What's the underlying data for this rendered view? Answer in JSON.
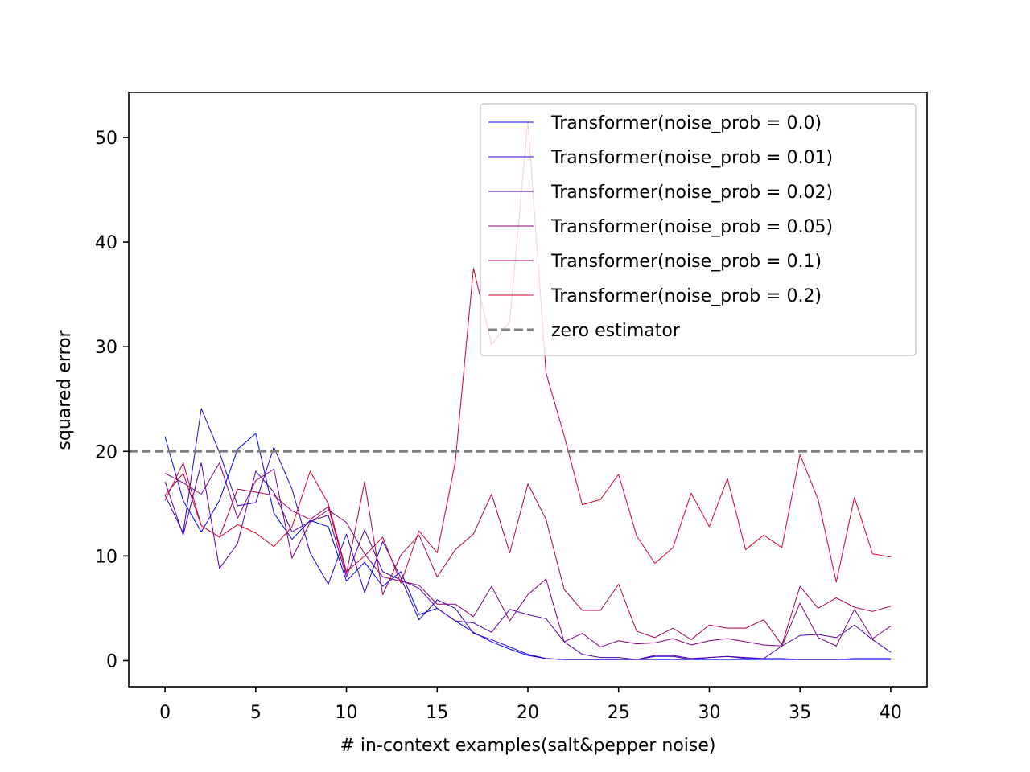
{
  "chart_data": {
    "type": "line",
    "title": "",
    "xlabel": "# in-context examples(salt&pepper noise)",
    "ylabel": "squared error",
    "xlim": [
      -2,
      42
    ],
    "ylim": [
      -2.5,
      54.3
    ],
    "xticks": [
      0,
      5,
      10,
      15,
      20,
      25,
      30,
      35,
      40
    ],
    "yticks": [
      0,
      10,
      20,
      30,
      40,
      50
    ],
    "grid": false,
    "legend_position": "top-right",
    "x": [
      0,
      1,
      2,
      3,
      4,
      5,
      6,
      7,
      8,
      9,
      10,
      11,
      12,
      13,
      14,
      15,
      16,
      17,
      18,
      19,
      20,
      21,
      22,
      23,
      24,
      25,
      26,
      27,
      28,
      29,
      30,
      31,
      32,
      33,
      34,
      35,
      36,
      37,
      38,
      39,
      40
    ],
    "series": [
      {
        "name": "Transformer(noise_prob = 0.0)",
        "color": "#0000ff",
        "values": [
          21.4,
          15.3,
          12.3,
          15.3,
          20.2,
          21.7,
          14.1,
          11.6,
          13.4,
          12.8,
          7.6,
          9.4,
          7.1,
          8.5,
          4.4,
          5.0,
          3.8,
          2.7,
          1.8,
          1.1,
          0.5,
          0.2,
          0.1,
          0.1,
          0.1,
          0.1,
          0.1,
          0.1,
          0.1,
          0.1,
          0.1,
          0.1,
          0.1,
          0.1,
          0.1,
          0.1,
          0.1,
          0.1,
          0.1,
          0.1,
          0.1
        ]
      },
      {
        "name": "Transformer(noise_prob = 0.01)",
        "color": "#2a00d5",
        "values": [
          15.8,
          12.2,
          24.1,
          19.9,
          14.8,
          15.1,
          20.4,
          16.4,
          10.3,
          7.3,
          12.1,
          6.5,
          11.4,
          7.9,
          3.9,
          5.8,
          5.0,
          2.6,
          2.0,
          1.3,
          0.6,
          0.2,
          0.1,
          0.1,
          0.1,
          0.1,
          0.1,
          0.4,
          0.4,
          0.1,
          0.3,
          0.4,
          0.2,
          0.2,
          0.2,
          0.1,
          0.1,
          0.1,
          0.2,
          0.2,
          0.2
        ]
      },
      {
        "name": "Transformer(noise_prob = 0.02)",
        "color": "#5500aa",
        "values": [
          17.1,
          12.0,
          18.9,
          8.8,
          11.2,
          18.1,
          16.1,
          12.3,
          13.3,
          13.9,
          8.0,
          12.5,
          8.5,
          7.7,
          6.9,
          5.0,
          3.8,
          3.6,
          2.7,
          4.9,
          4.4,
          4.0,
          1.8,
          0.6,
          0.3,
          0.3,
          0.1,
          0.5,
          0.5,
          0.2,
          0.3,
          0.4,
          0.3,
          0.2,
          1.4,
          2.4,
          2.5,
          2.2,
          3.4,
          2.0,
          0.8
        ]
      },
      {
        "name": "Transformer(noise_prob = 0.05)",
        "color": "#800080",
        "values": [
          17.9,
          17.0,
          15.9,
          18.9,
          13.6,
          17.2,
          18.3,
          9.8,
          13.2,
          14.4,
          13.2,
          10.2,
          8.0,
          7.6,
          7.2,
          5.4,
          5.4,
          4.2,
          7.1,
          3.8,
          6.3,
          7.8,
          1.8,
          2.6,
          1.3,
          1.9,
          1.6,
          1.7,
          2.1,
          1.5,
          1.9,
          2.1,
          1.8,
          1.5,
          1.4,
          5.5,
          2.2,
          1.4,
          4.9,
          2.1,
          3.3
        ]
      },
      {
        "name": "Transformer(noise_prob = 0.1)",
        "color": "#aa0055",
        "values": [
          15.8,
          17.9,
          12.9,
          11.8,
          16.4,
          16.1,
          15.8,
          14.3,
          13.5,
          14.7,
          8.3,
          17.1,
          6.3,
          10.1,
          12.0,
          8.0,
          10.6,
          12.1,
          15.9,
          10.3,
          16.9,
          13.5,
          6.8,
          4.8,
          4.8,
          7.3,
          2.8,
          2.2,
          3.1,
          2.0,
          3.4,
          3.1,
          3.1,
          3.9,
          1.5,
          7.1,
          5.0,
          6.0,
          5.1,
          4.7,
          5.2
        ]
      },
      {
        "name": "Transformer(noise_prob = 0.2)",
        "color": "#d5002a",
        "values": [
          15.3,
          18.9,
          12.9,
          11.8,
          13.0,
          12.2,
          10.9,
          12.8,
          18.1,
          15.0,
          8.5,
          10.0,
          11.8,
          7.4,
          12.4,
          10.3,
          19.0,
          37.5,
          30.2,
          32.4,
          51.6,
          27.5,
          21.5,
          14.9,
          15.4,
          17.8,
          11.9,
          9.3,
          10.8,
          16.0,
          12.8,
          17.4,
          10.6,
          12.0,
          10.8,
          19.7,
          15.4,
          7.5,
          15.6,
          10.2,
          9.9
        ]
      },
      {
        "name": "zero estimator",
        "color": "#808080",
        "dashed": true,
        "constant": 20
      }
    ]
  }
}
